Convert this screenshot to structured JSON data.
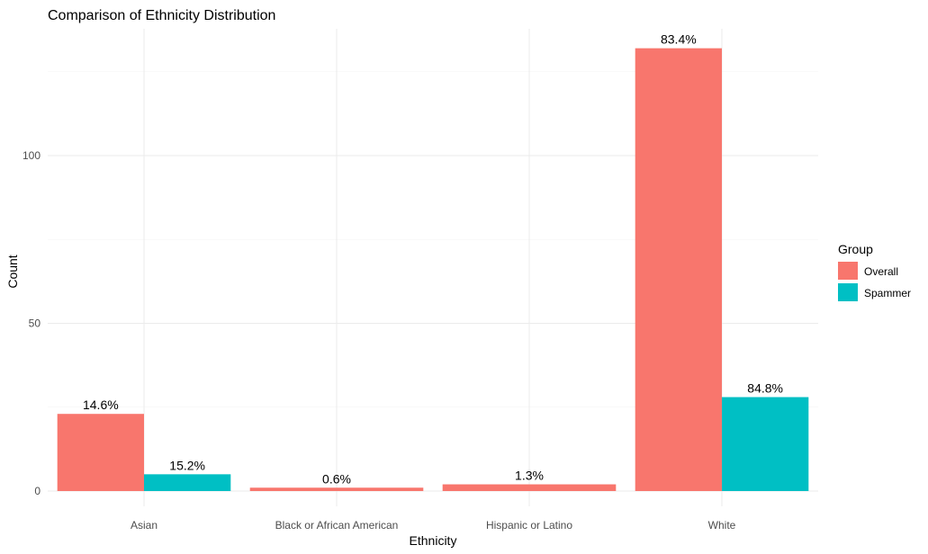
{
  "chart_data": {
    "type": "bar",
    "title": "Comparison of Ethnicity Distribution",
    "xlabel": "Ethnicity",
    "ylabel": "Count",
    "categories": [
      "Asian",
      "Black or African American",
      "Hispanic or Latino",
      "White"
    ],
    "series": [
      {
        "name": "Overall",
        "color": "#F8766D",
        "values": [
          23,
          1,
          2,
          132
        ],
        "labels": [
          "14.6%",
          "0.6%",
          "1.3%",
          "83.4%"
        ]
      },
      {
        "name": "Spammer",
        "color": "#00BFC4",
        "values": [
          5,
          0,
          0,
          28
        ],
        "labels": [
          "15.2%",
          null,
          null,
          "84.8%"
        ]
      }
    ],
    "ylim": [
      0,
      135
    ],
    "yticks": [
      0,
      50,
      100
    ],
    "grid": true,
    "legend": {
      "title": "Group",
      "position": "right"
    }
  }
}
